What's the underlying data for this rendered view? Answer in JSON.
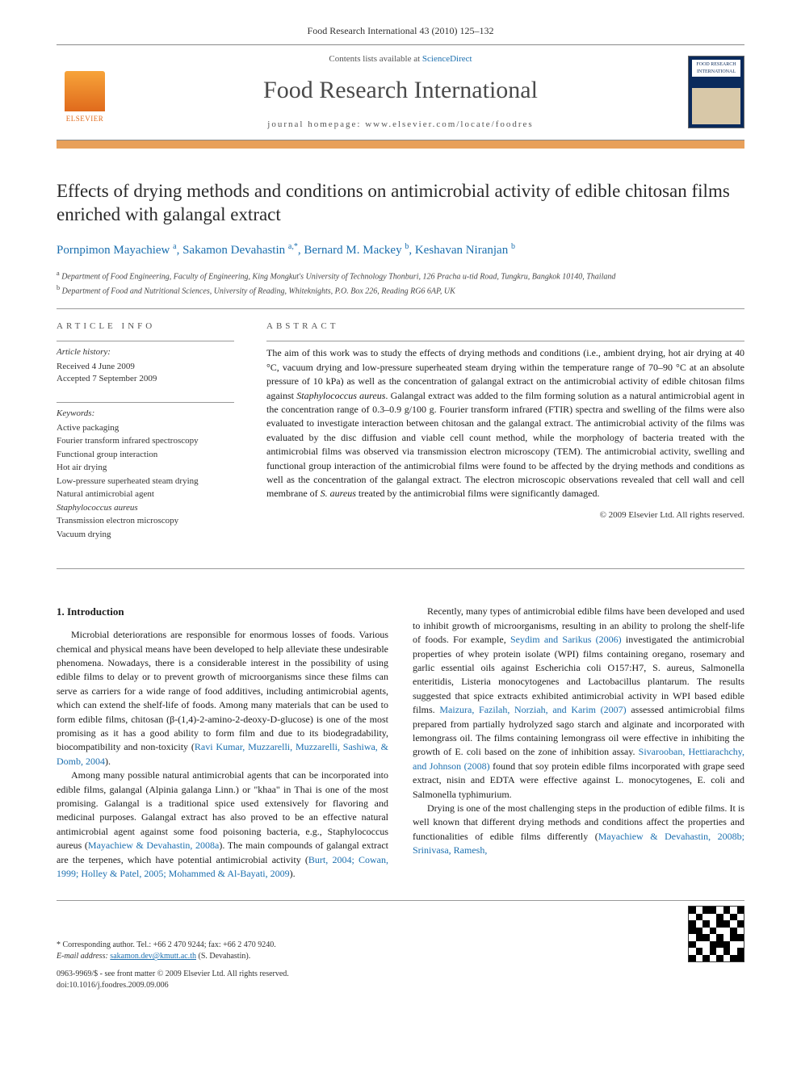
{
  "header": {
    "citation": "Food Research International 43 (2010) 125–132",
    "contents_prefix": "Contents lists available at ",
    "contents_link": "ScienceDirect",
    "journal": "Food Research International",
    "homepage_label": "journal homepage: www.elsevier.com/locate/foodres",
    "publisher_logo": "ELSEVIER",
    "cover_title": "FOOD RESEARCH INTERNATIONAL"
  },
  "article": {
    "title": "Effects of drying methods and conditions on antimicrobial activity of edible chitosan films enriched with galangal extract",
    "authors_html": "Pornpimon Mayachiew <sup>a</sup>, Sakamon Devahastin <sup>a,*</sup>, Bernard M. Mackey <sup>b</sup>, Keshavan Niranjan <sup>b</sup>",
    "affiliations": [
      {
        "sup": "a",
        "text": "Department of Food Engineering, Faculty of Engineering, King Mongkut's University of Technology Thonburi, 126 Pracha u-tid Road, Tungkru, Bangkok 10140, Thailand"
      },
      {
        "sup": "b",
        "text": "Department of Food and Nutritional Sciences, University of Reading, Whiteknights, P.O. Box 226, Reading RG6 6AP, UK"
      }
    ]
  },
  "info": {
    "heading": "ARTICLE INFO",
    "history_label": "Article history:",
    "received": "Received 4 June 2009",
    "accepted": "Accepted 7 September 2009",
    "keywords_label": "Keywords:",
    "keywords": [
      "Active packaging",
      "Fourier transform infrared spectroscopy",
      "Functional group interaction",
      "Hot air drying",
      "Low-pressure superheated steam drying",
      "Natural antimicrobial agent",
      "Staphylococcus aureus",
      "Transmission electron microscopy",
      "Vacuum drying"
    ]
  },
  "abstract": {
    "heading": "ABSTRACT",
    "text": "The aim of this work was to study the effects of drying methods and conditions (i.e., ambient drying, hot air drying at 40 °C, vacuum drying and low-pressure superheated steam drying within the temperature range of 70–90 °C at an absolute pressure of 10 kPa) as well as the concentration of galangal extract on the antimicrobial activity of edible chitosan films against Staphylococcus aureus. Galangal extract was added to the film forming solution as a natural antimicrobial agent in the concentration range of 0.3–0.9 g/100 g. Fourier transform infrared (FTIR) spectra and swelling of the films were also evaluated to investigate interaction between chitosan and the galangal extract. The antimicrobial activity of the films was evaluated by the disc diffusion and viable cell count method, while the morphology of bacteria treated with the antimicrobial films was observed via transmission electron microscopy (TEM). The antimicrobial activity, swelling and functional group interaction of the antimicrobial films were found to be affected by the drying methods and conditions as well as the concentration of the galangal extract. The electron microscopic observations revealed that cell wall and cell membrane of S. aureus treated by the antimicrobial films were significantly damaged.",
    "copyright": "© 2009 Elsevier Ltd. All rights reserved."
  },
  "body": {
    "section_heading": "1. Introduction",
    "p1_a": "Microbial deteriorations are responsible for enormous losses of foods. Various chemical and physical means have been developed to help alleviate these undesirable phenomena. Nowadays, there is a considerable interest in the possibility of using edible films to delay or to prevent growth of microorganisms since these films can serve as carriers for a wide range of food additives, including antimicrobial agents, which can extend the shelf-life of foods. Among many materials that can be used to form edible films, chitosan (β-(1,4)-2-amino-2-deoxy-D-glucose) is one of the most promising as it has a good ability to form film and due to its biodegradability, biocompatibility and non-toxicity (",
    "p1_ref": "Ravi Kumar, Muzzarelli, Muzzarelli, Sashiwa, & Domb, 2004",
    "p1_b": ").",
    "p2_a": "Among many possible natural antimicrobial agents that can be incorporated into edible films, galangal (Alpinia galanga Linn.) or \"khaa\" in Thai is one of the most promising. Galangal is a traditional spice used extensively for flavoring and medicinal purposes. Galangal extract has also proved to be an effective natural antimicrobial agent against some food poisoning bacteria, e.g., Staphylococcus aureus (",
    "p2_ref": "Mayachiew & Devahastin, 2008a",
    "p2_b": "). The main compounds of galangal extract are the terpenes, which have potential antimicrobial activity (",
    "p2_ref2": "Burt, 2004; Cowan, 1999; Holley & Patel, 2005; Mohammed & Al-Bayati, 2009",
    "p2_c": ").",
    "p3_a": "Recently, many types of antimicrobial edible films have been developed and used to inhibit growth of microorganisms, resulting in an ability to prolong the shelf-life of foods. For example, ",
    "p3_ref1": "Seydim and Sarikus (2006)",
    "p3_b": " investigated the antimicrobial properties of whey protein isolate (WPI) films containing oregano, rosemary and garlic essential oils against Escherichia coli O157:H7, S. aureus, Salmonella enteritidis, Listeria monocytogenes and Lactobacillus plantarum. The results suggested that spice extracts exhibited antimicrobial activity in WPI based edible films. ",
    "p3_ref2": "Maizura, Fazilah, Norziah, and Karim (2007)",
    "p3_c": " assessed antimicrobial films prepared from partially hydrolyzed sago starch and alginate and incorporated with lemongrass oil. The films containing lemongrass oil were effective in inhibiting the growth of E. coli based on the zone of inhibition assay. ",
    "p3_ref3": "Sivarooban, Hettiarachchy, and Johnson (2008)",
    "p3_d": " found that soy protein edible films incorporated with grape seed extract, nisin and EDTA were effective against L. monocytogenes, E. coli and Salmonella typhimurium.",
    "p4_a": "Drying is one of the most challenging steps in the production of edible films. It is well known that different drying methods and conditions affect the properties and functionalities of edible films differently (",
    "p4_ref": "Mayachiew & Devahastin, 2008b; Srinivasa, Ramesh,",
    "p4_b": ""
  },
  "footnote": {
    "corr": "* Corresponding author. Tel.: +66 2 470 9244; fax: +66 2 470 9240.",
    "email_label": "E-mail address:",
    "email": "sakamon.dev@kmutt.ac.th",
    "email_name": "(S. Devahastin).",
    "front_matter": "0963-9969/$ - see front matter © 2009 Elsevier Ltd. All rights reserved.",
    "doi": "doi:10.1016/j.foodres.2009.09.006"
  },
  "colors": {
    "link": "#1b6faf",
    "orange_bar": "#e8a05a",
    "elsevier_orange": "#e06a1c",
    "cover_blue": "#0a2a5c"
  }
}
